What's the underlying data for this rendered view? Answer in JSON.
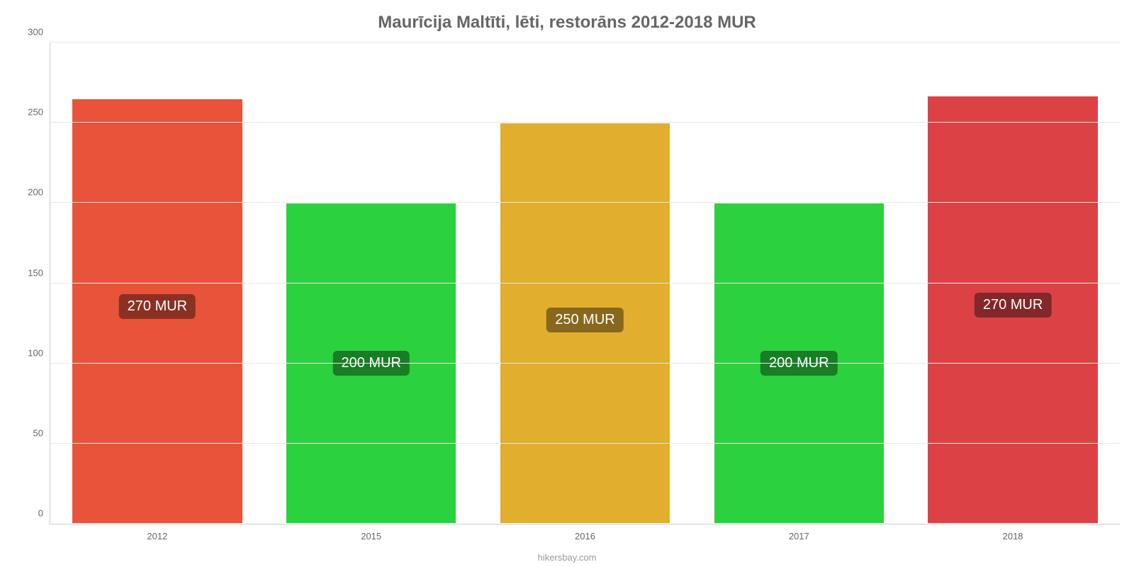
{
  "chart": {
    "type": "bar",
    "title": "Maurīcija Maltīti, lēti, restorāns 2012-2018 MUR",
    "title_color": "#666666",
    "title_fontsize": 24,
    "credit": "hikersbay.com",
    "credit_color": "#999999",
    "credit_fontsize": 13,
    "background_color": "#ffffff",
    "axis_color": "#cccccc",
    "grid_color": "#e6e6e6",
    "ylim_min": 0,
    "ylim_max": 300,
    "ytick_step": 50,
    "ytick_labels": [
      "0",
      "50",
      "100",
      "150",
      "200",
      "250",
      "300"
    ],
    "ytick_color": "#666666",
    "ytick_fontsize": 13,
    "xtick_color": "#666666",
    "xtick_fontsize": 13,
    "bar_width_pct": 80,
    "bar_label_fontsize": 20,
    "bar_label_text_color": "#ffffff",
    "bars": [
      {
        "category": "2012",
        "value": 265,
        "label": "270 MUR",
        "color": "#e8533a",
        "label_bg": "#8b3123"
      },
      {
        "category": "2015",
        "value": 200,
        "label": "200 MUR",
        "color": "#2bd13e",
        "label_bg": "#197d25"
      },
      {
        "category": "2016",
        "value": 250,
        "label": "250 MUR",
        "color": "#e1ae2e",
        "label_bg": "#87681c"
      },
      {
        "category": "2017",
        "value": 200,
        "label": "200 MUR",
        "color": "#2bd13e",
        "label_bg": "#197d25"
      },
      {
        "category": "2018",
        "value": 267,
        "label": "270 MUR",
        "color": "#dc4245",
        "label_bg": "#842729"
      }
    ]
  }
}
